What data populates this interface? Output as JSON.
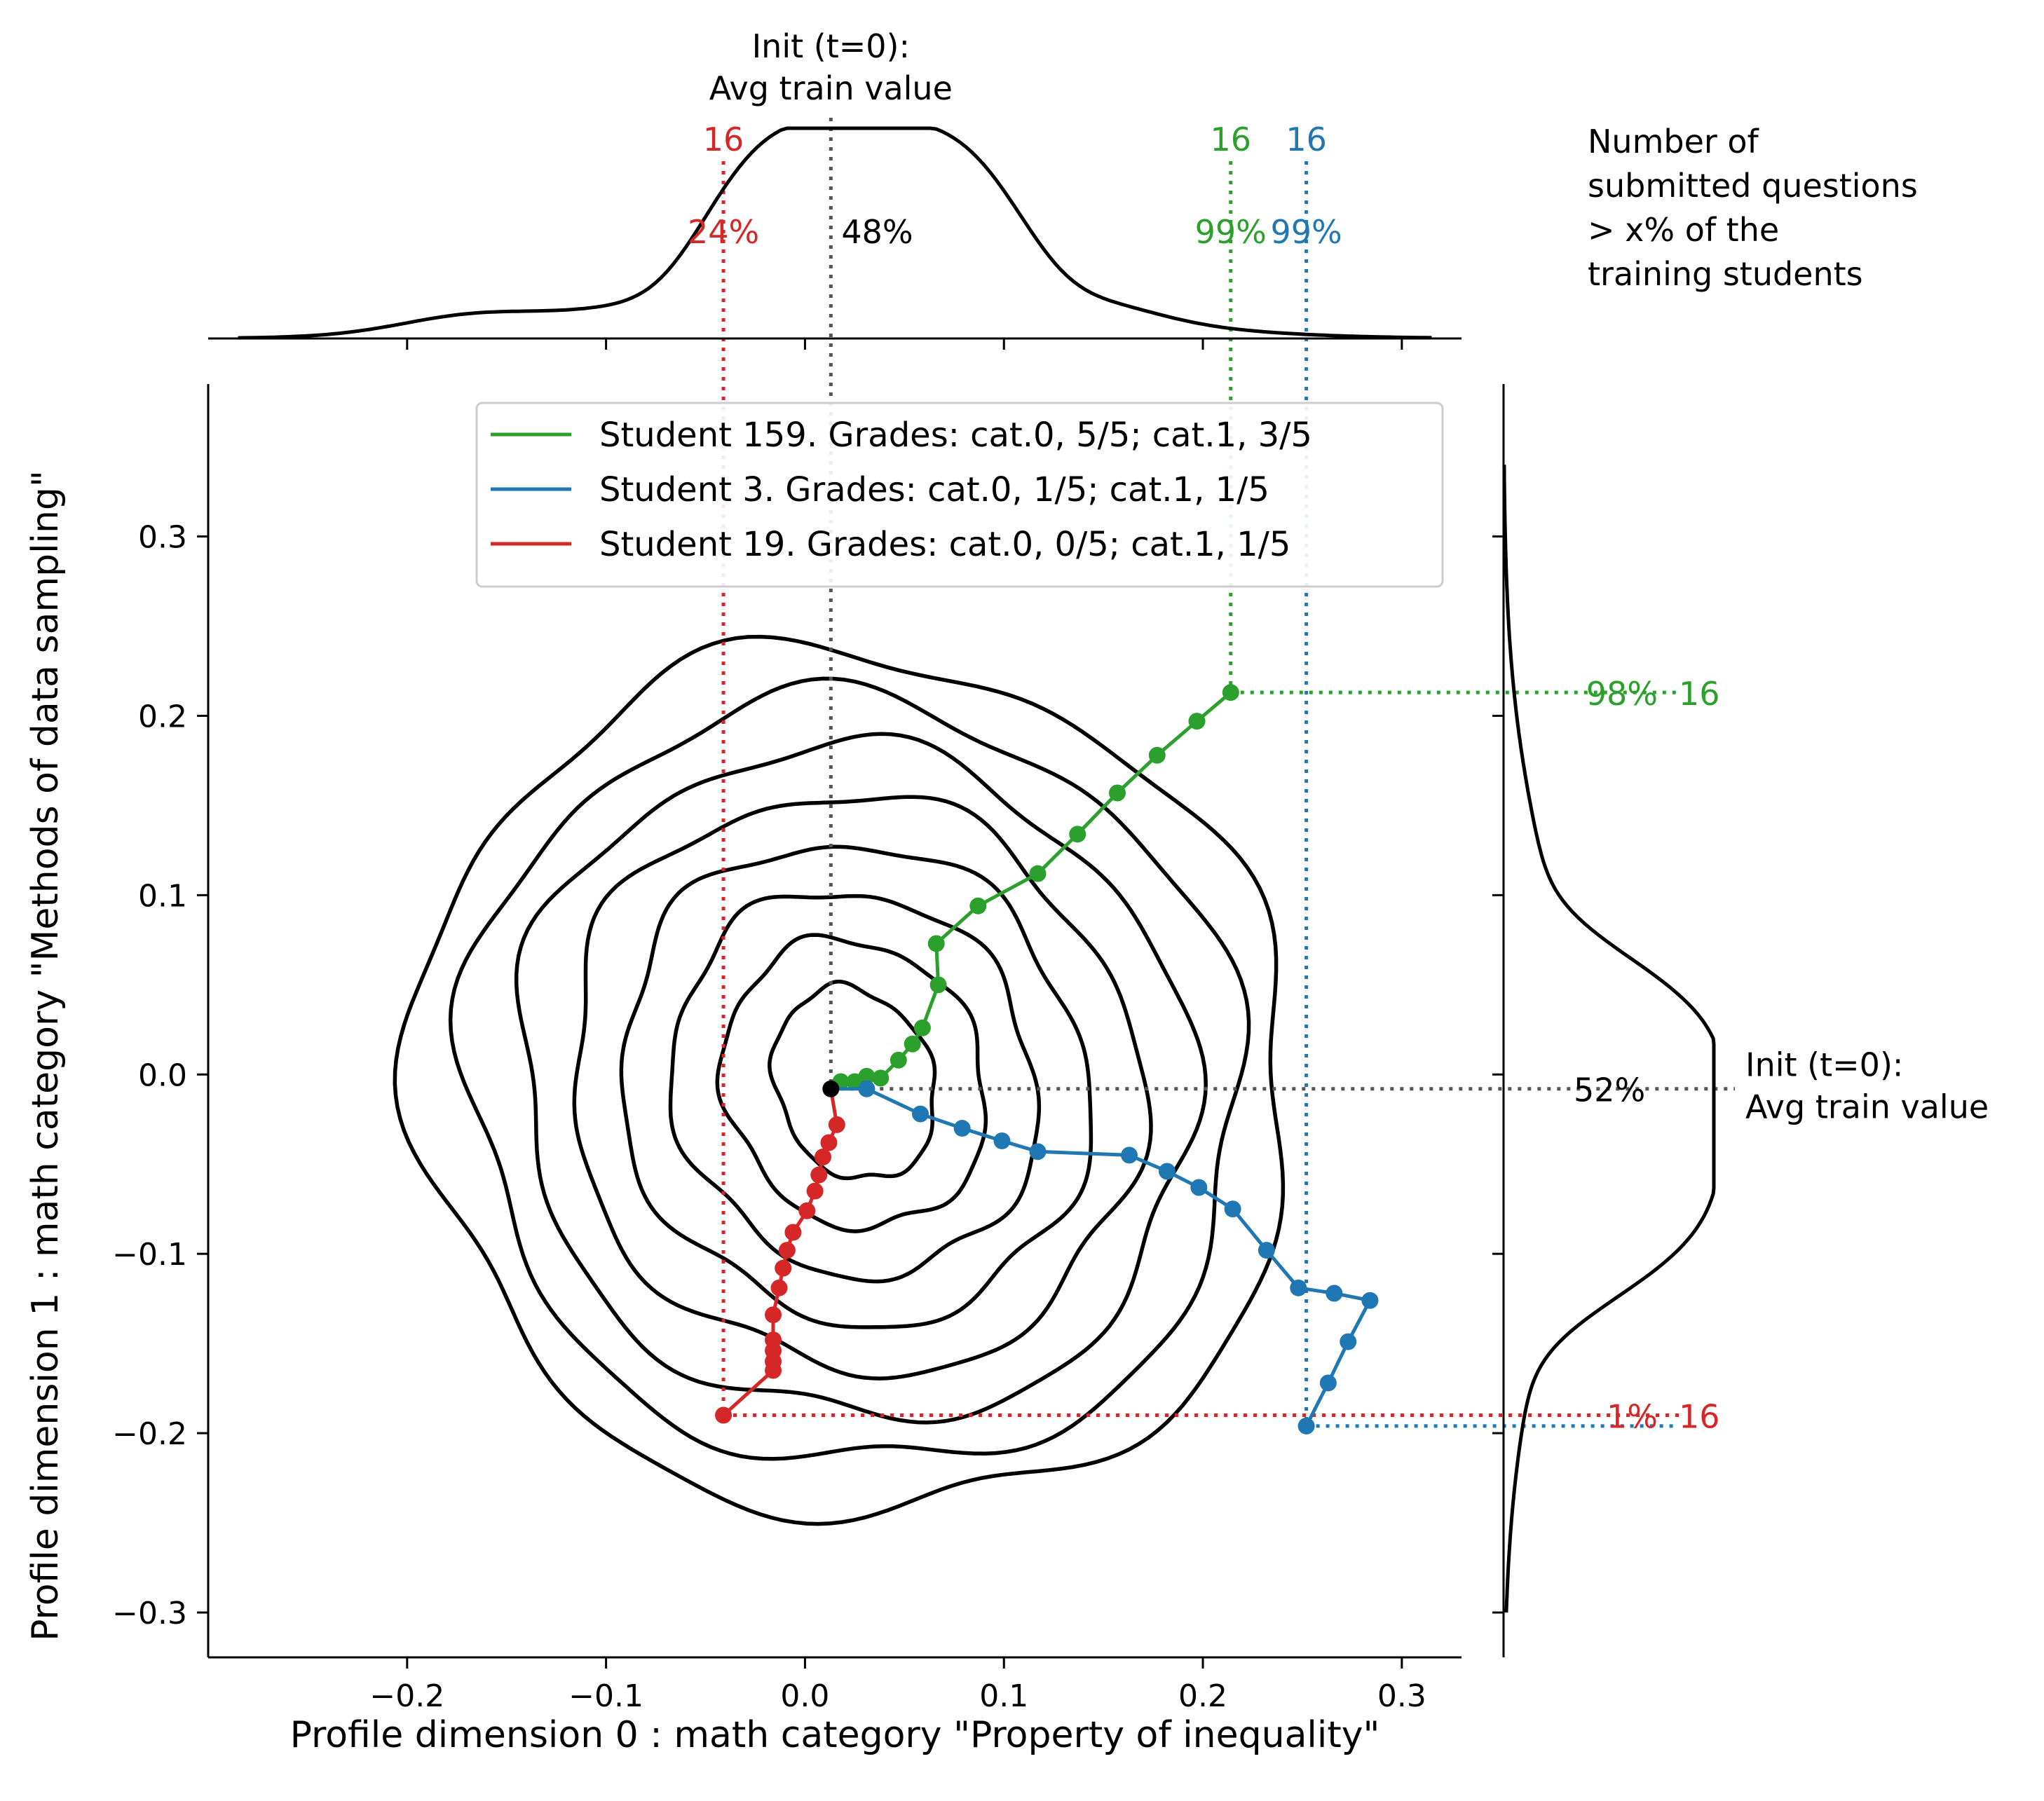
{
  "chart_data": {
    "type": "scatter",
    "xlabel": "Profile dimension 0 : math category \"Property of inequality\"",
    "ylabel": "Profile dimension 1 : math category \"Methods of data sampling\"",
    "xlim": [
      -0.3,
      0.33
    ],
    "ylim": [
      -0.325,
      0.385
    ],
    "xticks": [
      -0.2,
      -0.1,
      0.0,
      0.1,
      0.2,
      0.3
    ],
    "xtick_labels": [
      "−0.2",
      "−0.1",
      "0.0",
      "0.1",
      "0.2",
      "0.3"
    ],
    "yticks": [
      -0.3,
      -0.2,
      -0.1,
      0.0,
      0.1,
      0.2,
      0.3
    ],
    "ytick_labels": [
      "−0.3",
      "−0.2",
      "−0.1",
      "0.0",
      "0.1",
      "0.2",
      "0.3"
    ],
    "grid": false,
    "legend_position": "top-center",
    "init_point": {
      "x": 0.013,
      "y": -0.008,
      "color": "#000000"
    },
    "series": [
      {
        "name": "Student 159. Grades: cat.0, 5/5; cat.1, 3/5",
        "color": "#2ca02c",
        "x": [
          0.013,
          0.018,
          0.025,
          0.031,
          0.038,
          0.047,
          0.054,
          0.059,
          0.067,
          0.066,
          0.087,
          0.117,
          0.137,
          0.157,
          0.177,
          0.197,
          0.214
        ],
        "y": [
          -0.008,
          -0.004,
          -0.004,
          -0.001,
          -0.002,
          0.008,
          0.017,
          0.026,
          0.05,
          0.073,
          0.094,
          0.112,
          0.134,
          0.157,
          0.178,
          0.197,
          0.213
        ]
      },
      {
        "name": "Student 3. Grades: cat.0, 1/5; cat.1, 1/5",
        "color": "#1f77b4",
        "x": [
          0.013,
          0.031,
          0.058,
          0.079,
          0.099,
          0.117,
          0.163,
          0.182,
          0.198,
          0.215,
          0.232,
          0.248,
          0.266,
          0.284,
          0.273,
          0.263,
          0.252
        ],
        "y": [
          -0.008,
          -0.008,
          -0.022,
          -0.03,
          -0.037,
          -0.043,
          -0.045,
          -0.054,
          -0.063,
          -0.075,
          -0.098,
          -0.119,
          -0.122,
          -0.126,
          -0.149,
          -0.172,
          -0.196
        ]
      },
      {
        "name": "Student 19. Grades: cat.0, 0/5; cat.1, 1/5",
        "color": "#d62728",
        "x": [
          0.013,
          0.016,
          0.012,
          0.009,
          0.007,
          0.005,
          0.001,
          -0.006,
          -0.009,
          -0.011,
          -0.013,
          -0.016,
          -0.016,
          -0.016,
          -0.016,
          -0.016,
          -0.041
        ],
        "y": [
          -0.008,
          -0.028,
          -0.038,
          -0.046,
          -0.056,
          -0.065,
          -0.076,
          -0.088,
          -0.098,
          -0.108,
          -0.119,
          -0.134,
          -0.148,
          -0.154,
          -0.16,
          -0.165,
          -0.19
        ]
      }
    ],
    "init_label": "Init (t=0):\nAvg train value",
    "top_marginal": {
      "init_percent": "48%",
      "markers": [
        {
          "x": -0.041,
          "count": "16",
          "percent": "24%",
          "color": "#d62728"
        },
        {
          "x": 0.214,
          "count": "16",
          "percent": "99%",
          "color": "#2ca02c"
        },
        {
          "x": 0.252,
          "count": "16",
          "percent": "99%",
          "color": "#1f77b4"
        }
      ]
    },
    "right_marginal": {
      "init_percent": "52%",
      "markers": [
        {
          "y": 0.213,
          "count": "16",
          "percent": "98%",
          "color": "#2ca02c"
        },
        {
          "y": -0.19,
          "count": "16",
          "percent": "1%",
          "color": "#d62728"
        },
        {
          "y": -0.196,
          "count": "",
          "percent": "",
          "color": "#1f77b4"
        }
      ]
    },
    "side_note": "Number of\nsubmitted questions\n> x% of the\ntraining students",
    "contour_levels": 8
  }
}
